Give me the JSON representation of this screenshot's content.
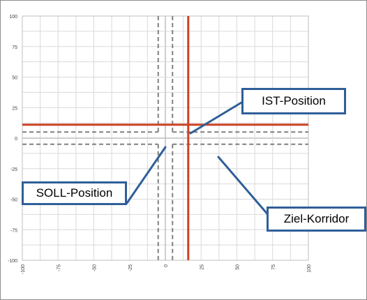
{
  "chart_data": {
    "type": "scatter",
    "title": "",
    "xlabel": "",
    "ylabel": "",
    "xlim": [
      -100,
      100
    ],
    "ylim": [
      -100,
      100
    ],
    "x_ticks": [
      "-100",
      "-75",
      "-50",
      "-25",
      "0",
      "25",
      "50",
      "75",
      "100"
    ],
    "y_ticks": [
      "100",
      "75",
      "50",
      "25",
      "0",
      "-25",
      "-50",
      "-75",
      "-100"
    ],
    "grid": true,
    "ist_position": {
      "x": 16,
      "y": 11
    },
    "soll_position": {
      "x": 0,
      "y": 0
    },
    "ziel_korridor": {
      "x": [
        -5,
        5
      ],
      "y": [
        -5,
        5
      ]
    },
    "colors": {
      "ist_line": "#cc4125",
      "corridor_line": "#808080",
      "grid": "#d9d9d9",
      "zero_axis": "#bfbfbf",
      "callout_border": "#2f5f98"
    }
  },
  "callouts": {
    "ist": "IST-Position",
    "soll": "SOLL-Position",
    "ziel": "Ziel-Korridor"
  }
}
